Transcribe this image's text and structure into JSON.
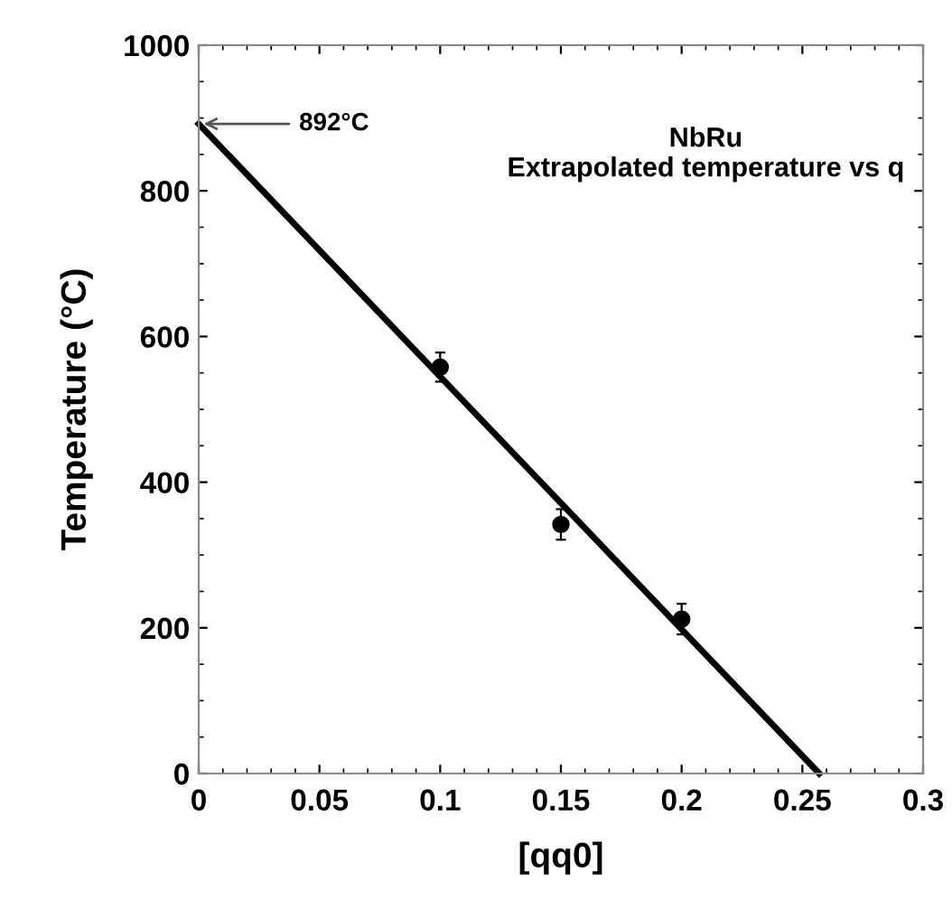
{
  "chart_data": {
    "type": "scatter",
    "title": "NbRu\nExtrapolated temperature vs q",
    "xlabel": "[qq0]",
    "ylabel": "Temperature (°C)",
    "series": [
      {
        "color": "#000000",
        "x": [
          0.1,
          0.15,
          0.2
        ],
        "values": [
          558,
          342,
          212
        ],
        "errors": [
          20,
          21,
          21
        ],
        "marker": "circle"
      },
      {
        "type": "line",
        "color": "#000000",
        "x": [
          0,
          0.257
        ],
        "values": [
          892,
          0
        ],
        "line_style": "solid",
        "marker": "none"
      }
    ],
    "annotations": [
      {
        "text": "892°C",
        "x": 0,
        "y": 892
      }
    ],
    "xlim": [
      0,
      0.3
    ],
    "xticks": [
      0,
      0.05,
      0.1,
      0.15,
      0.2,
      0.25,
      0.3
    ],
    "ylim": [
      0,
      1000
    ],
    "yticks": [
      0,
      200,
      400,
      600,
      800,
      1000
    ],
    "grid": false,
    "legend": false
  }
}
